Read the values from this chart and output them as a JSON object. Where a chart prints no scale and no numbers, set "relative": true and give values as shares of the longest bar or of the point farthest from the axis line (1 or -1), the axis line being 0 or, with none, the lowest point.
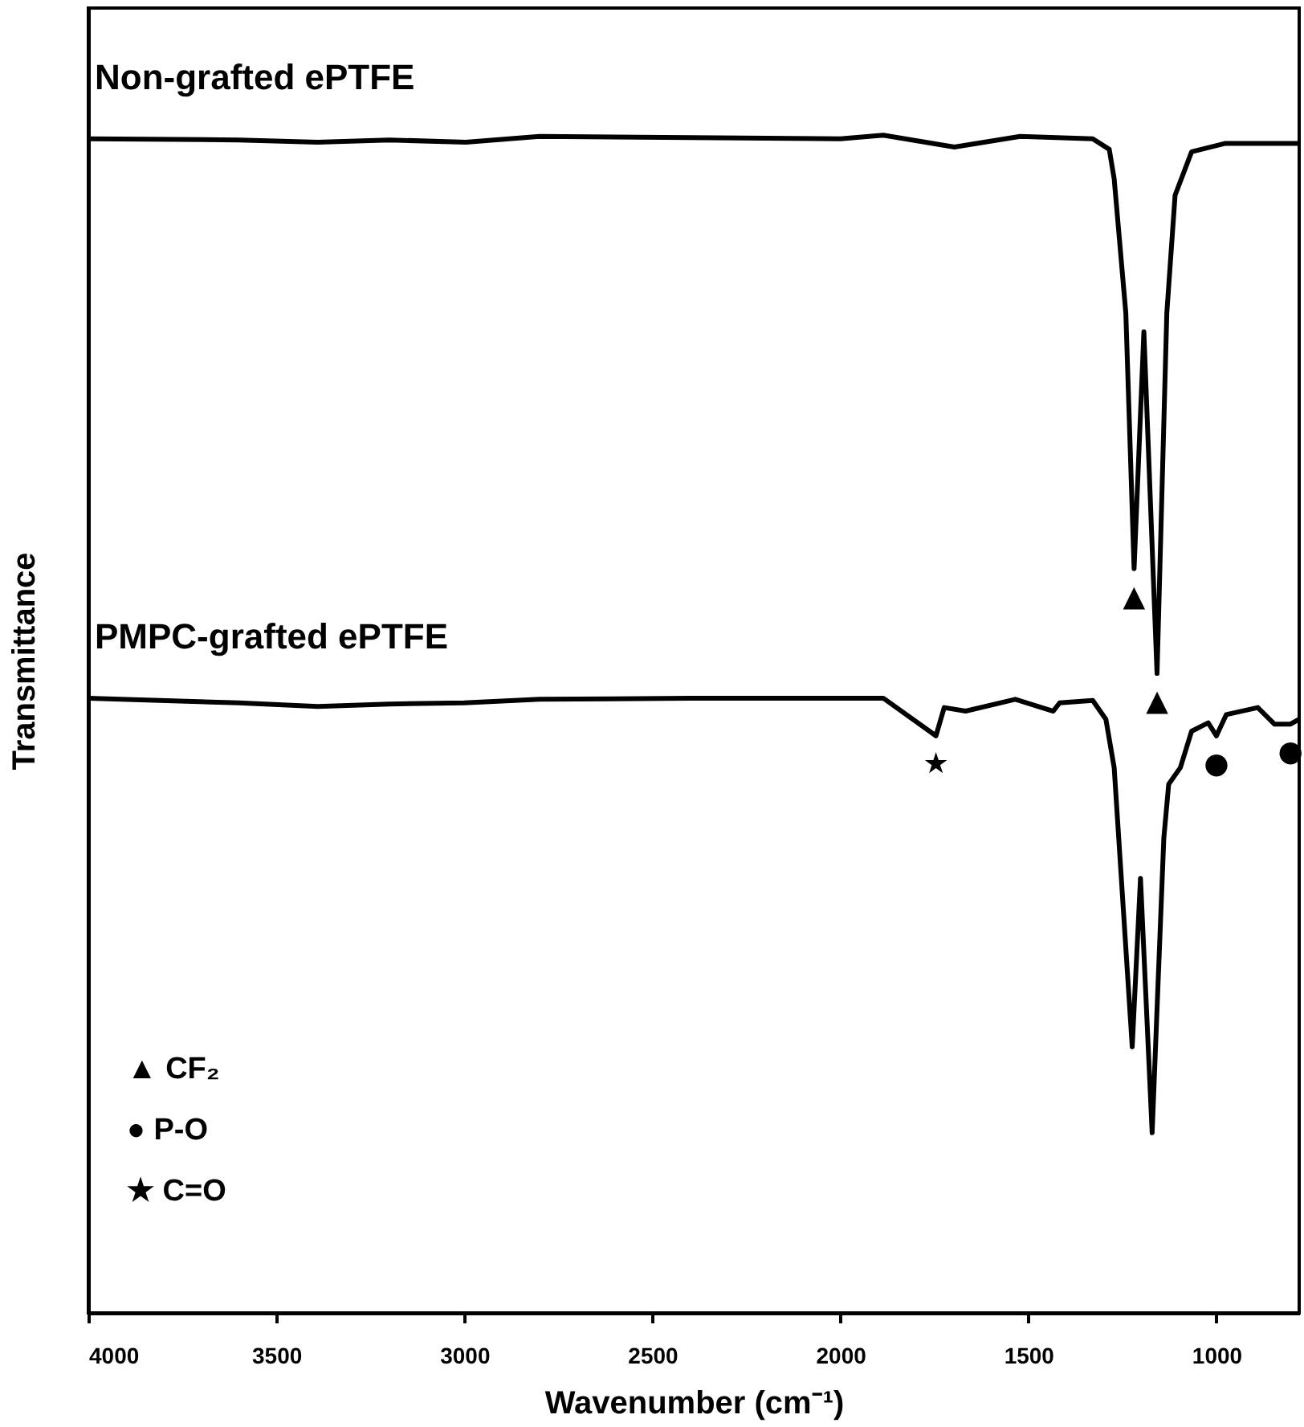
{
  "chart_data": {
    "type": "line",
    "relative": true,
    "xlabel": "Wavenumber (cm⁻¹)",
    "ylabel": "Transmittance",
    "xlim": [
      4000,
      780
    ],
    "xticks": [
      4000,
      3500,
      3000,
      2500,
      2000,
      1500,
      1000
    ],
    "grid": false,
    "marker": "none",
    "line_style": "solid",
    "series": [
      {
        "name": "Non-grafted ePTFE",
        "color": "#000000",
        "x": [
          4000,
          3600,
          3390,
          3200,
          2996,
          2800,
          2400,
          2000,
          1886,
          1697,
          1522,
          1329,
          1285,
          1272,
          1241,
          1219,
          1193,
          1158,
          1132,
          1110,
          1066,
          978,
          781
        ],
        "values": [
          0.997,
          0.996,
          0.994,
          0.996,
          0.994,
          0.999,
          0.998,
          0.997,
          1.0,
          0.99,
          0.999,
          0.997,
          0.988,
          0.963,
          0.849,
          0.632,
          0.833,
          0.543,
          0.849,
          0.949,
          0.986,
          0.993,
          0.993
        ]
      },
      {
        "name": "PMPC-grafted ePTFE",
        "color": "#000000",
        "x": [
          4000,
          3600,
          3390,
          3200,
          3000,
          2800,
          2400,
          2000,
          1886,
          1746,
          1724,
          1667,
          1535,
          1434,
          1417,
          1329,
          1294,
          1272,
          1224,
          1202,
          1171,
          1140,
          1127,
          1096,
          1066,
          1022,
          1000,
          974,
          890,
          846,
          803,
          781
        ],
        "values": [
          0.522,
          0.518,
          0.515,
          0.517,
          0.518,
          0.521,
          0.522,
          0.522,
          0.522,
          0.49,
          0.514,
          0.511,
          0.521,
          0.511,
          0.518,
          0.52,
          0.504,
          0.463,
          0.226,
          0.369,
          0.153,
          0.403,
          0.449,
          0.463,
          0.494,
          0.501,
          0.49,
          0.508,
          0.514,
          0.5,
          0.5,
          0.504
        ]
      }
    ],
    "annotations": [
      {
        "text": "▲",
        "x": 1219,
        "y": 0.632
      },
      {
        "text": "▲",
        "x": 1158,
        "y": 0.543
      },
      {
        "text": "★",
        "x": 1746,
        "y": 0.49
      },
      {
        "text": "●",
        "x": 1000,
        "y": 0.49
      },
      {
        "text": "●",
        "x": 803,
        "y": 0.5
      },
      "▲ CF₂",
      "● P-O",
      "★ C=O"
    ]
  }
}
